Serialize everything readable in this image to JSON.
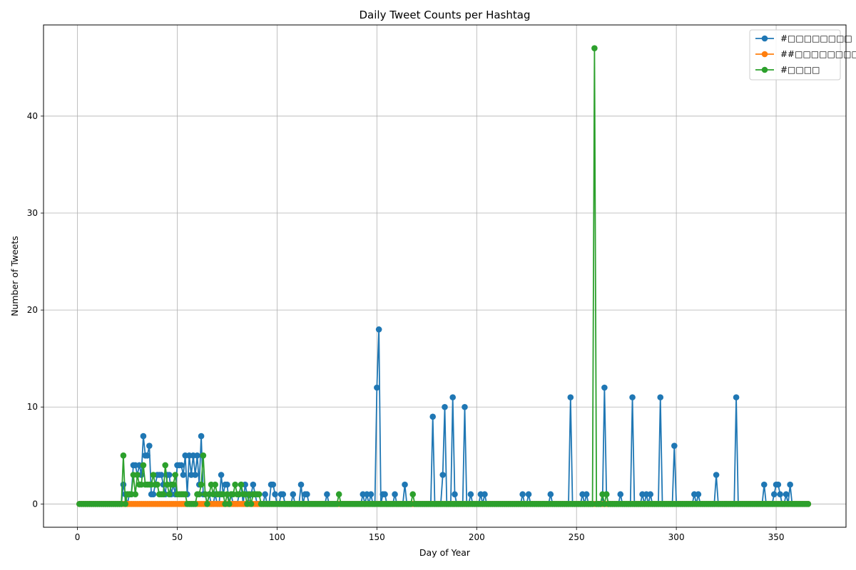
{
  "chart_data": {
    "type": "line",
    "title": "Daily Tweet Counts per Hashtag",
    "xlabel": "Day of Year",
    "ylabel": "Number of Tweets",
    "xlim": [
      -17,
      385
    ],
    "ylim": [
      -2.4,
      49.4
    ],
    "xticks": [
      0,
      50,
      100,
      150,
      200,
      250,
      300,
      350
    ],
    "yticks": [
      0,
      10,
      20,
      30,
      40
    ],
    "grid": true,
    "legend_position": "top-right",
    "x_range": [
      1,
      366
    ],
    "series": [
      {
        "name": "#□□□□□□□□",
        "color": "#1f77b4",
        "baseline": 0,
        "values": [
          [
            23,
            2
          ],
          [
            24,
            1
          ],
          [
            26,
            1
          ],
          [
            27,
            1
          ],
          [
            28,
            4
          ],
          [
            29,
            4
          ],
          [
            30,
            3
          ],
          [
            31,
            4
          ],
          [
            32,
            3
          ],
          [
            33,
            7
          ],
          [
            34,
            5
          ],
          [
            35,
            5
          ],
          [
            36,
            6
          ],
          [
            37,
            1
          ],
          [
            38,
            1
          ],
          [
            39,
            2
          ],
          [
            40,
            3
          ],
          [
            41,
            3
          ],
          [
            42,
            3
          ],
          [
            43,
            2
          ],
          [
            44,
            1
          ],
          [
            45,
            3
          ],
          [
            46,
            3
          ],
          [
            47,
            1
          ],
          [
            48,
            2
          ],
          [
            49,
            1
          ],
          [
            50,
            4
          ],
          [
            51,
            4
          ],
          [
            52,
            4
          ],
          [
            53,
            3
          ],
          [
            54,
            5
          ],
          [
            55,
            1
          ],
          [
            56,
            5
          ],
          [
            57,
            3
          ],
          [
            58,
            5
          ],
          [
            59,
            3
          ],
          [
            60,
            5
          ],
          [
            61,
            2
          ],
          [
            62,
            7
          ],
          [
            63,
            1
          ],
          [
            64,
            1
          ],
          [
            66,
            1
          ],
          [
            69,
            1
          ],
          [
            72,
            3
          ],
          [
            73,
            1
          ],
          [
            74,
            2
          ],
          [
            75,
            2
          ],
          [
            77,
            1
          ],
          [
            81,
            1
          ],
          [
            82,
            2
          ],
          [
            84,
            2
          ],
          [
            85,
            1
          ],
          [
            87,
            1
          ],
          [
            88,
            2
          ],
          [
            89,
            1
          ],
          [
            94,
            1
          ],
          [
            97,
            2
          ],
          [
            98,
            2
          ],
          [
            99,
            1
          ],
          [
            102,
            1
          ],
          [
            103,
            1
          ],
          [
            108,
            1
          ],
          [
            112,
            2
          ],
          [
            114,
            1
          ],
          [
            115,
            1
          ],
          [
            125,
            1
          ],
          [
            143,
            1
          ],
          [
            145,
            1
          ],
          [
            147,
            1
          ],
          [
            150,
            12
          ],
          [
            151,
            18
          ],
          [
            153,
            1
          ],
          [
            154,
            1
          ],
          [
            159,
            1
          ],
          [
            164,
            2
          ],
          [
            178,
            9
          ],
          [
            183,
            3
          ],
          [
            184,
            10
          ],
          [
            188,
            11
          ],
          [
            189,
            1
          ],
          [
            194,
            10
          ],
          [
            197,
            1
          ],
          [
            202,
            1
          ],
          [
            204,
            1
          ],
          [
            223,
            1
          ],
          [
            226,
            1
          ],
          [
            237,
            1
          ],
          [
            247,
            11
          ],
          [
            253,
            1
          ],
          [
            255,
            1
          ],
          [
            264,
            12
          ],
          [
            265,
            1
          ],
          [
            272,
            1
          ],
          [
            278,
            11
          ],
          [
            283,
            1
          ],
          [
            285,
            1
          ],
          [
            287,
            1
          ],
          [
            292,
            11
          ],
          [
            299,
            6
          ],
          [
            309,
            1
          ],
          [
            311,
            1
          ],
          [
            320,
            3
          ],
          [
            330,
            11
          ],
          [
            344,
            2
          ],
          [
            349,
            1
          ],
          [
            350,
            2
          ],
          [
            351,
            2
          ],
          [
            352,
            1
          ],
          [
            355,
            1
          ],
          [
            357,
            2
          ]
        ]
      },
      {
        "name": "##□□□□□□□□",
        "color": "#ff7f0e",
        "baseline": 0,
        "values": [
          [
            27,
            0
          ],
          [
            33,
            0
          ],
          [
            38,
            0
          ],
          [
            40,
            0
          ],
          [
            44,
            0
          ],
          [
            62,
            0
          ],
          [
            75,
            0
          ],
          [
            84,
            0
          ]
        ]
      },
      {
        "name": "#□□□□",
        "color": "#2ca02c",
        "baseline": 0,
        "values": [
          [
            23,
            5
          ],
          [
            25,
            1
          ],
          [
            26,
            1
          ],
          [
            27,
            1
          ],
          [
            28,
            3
          ],
          [
            29,
            1
          ],
          [
            30,
            3
          ],
          [
            31,
            2
          ],
          [
            32,
            2
          ],
          [
            33,
            4
          ],
          [
            34,
            2
          ],
          [
            35,
            2
          ],
          [
            36,
            2
          ],
          [
            37,
            2
          ],
          [
            38,
            3
          ],
          [
            39,
            2
          ],
          [
            40,
            2
          ],
          [
            41,
            1
          ],
          [
            42,
            1
          ],
          [
            43,
            1
          ],
          [
            44,
            4
          ],
          [
            45,
            2
          ],
          [
            46,
            1
          ],
          [
            47,
            2
          ],
          [
            48,
            2
          ],
          [
            49,
            3
          ],
          [
            50,
            1
          ],
          [
            51,
            1
          ],
          [
            52,
            1
          ],
          [
            53,
            1
          ],
          [
            54,
            1
          ],
          [
            60,
            1
          ],
          [
            61,
            1
          ],
          [
            62,
            2
          ],
          [
            63,
            5
          ],
          [
            64,
            1
          ],
          [
            66,
            1
          ],
          [
            67,
            2
          ],
          [
            68,
            1
          ],
          [
            69,
            2
          ],
          [
            70,
            1
          ],
          [
            71,
            1
          ],
          [
            72,
            1
          ],
          [
            73,
            1
          ],
          [
            75,
            1
          ],
          [
            77,
            1
          ],
          [
            78,
            1
          ],
          [
            79,
            2
          ],
          [
            80,
            1
          ],
          [
            81,
            1
          ],
          [
            82,
            2
          ],
          [
            83,
            1
          ],
          [
            84,
            1
          ],
          [
            86,
            1
          ],
          [
            88,
            1
          ],
          [
            89,
            1
          ],
          [
            90,
            1
          ],
          [
            91,
            1
          ],
          [
            131,
            1
          ],
          [
            168,
            1
          ],
          [
            259,
            47
          ],
          [
            263,
            1
          ],
          [
            265,
            1
          ]
        ]
      }
    ]
  }
}
